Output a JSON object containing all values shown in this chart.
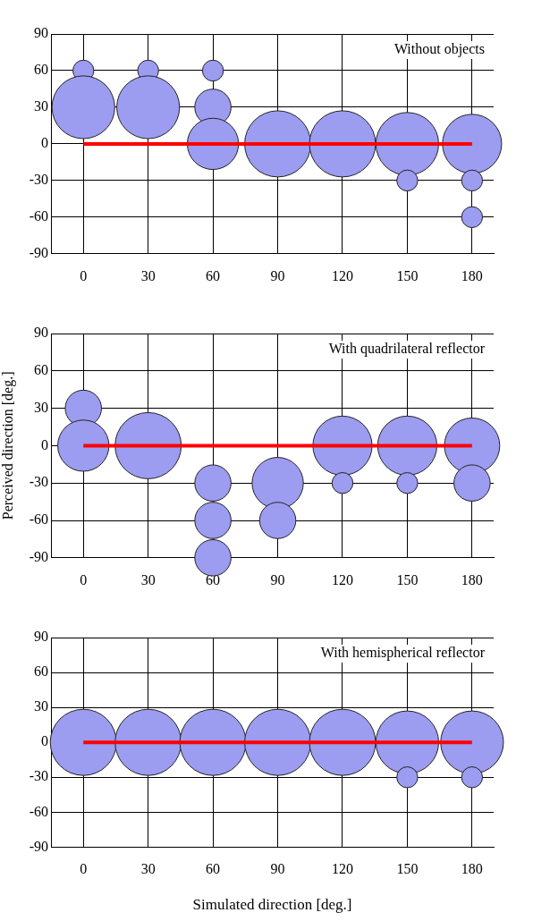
{
  "chart_data": [
    {
      "type": "bubble",
      "title": "Without objects",
      "xlim": [
        -15,
        190
      ],
      "ylim": [
        -90,
        90
      ],
      "xticks": [
        0,
        30,
        60,
        90,
        120,
        150,
        180
      ],
      "yticks": [
        -90,
        -60,
        -30,
        0,
        30,
        60,
        90
      ],
      "grid": true,
      "series": [
        {
          "color": "#9c9cf0",
          "x": [
            0,
            0,
            30,
            30,
            60,
            60,
            60,
            90,
            120,
            150,
            150,
            180,
            180,
            180
          ],
          "values": [
            60,
            30,
            60,
            30,
            60,
            30,
            0,
            0,
            0,
            0,
            -30,
            0,
            -30,
            -60
          ],
          "sizes": [
            0.1,
            0.9,
            0.1,
            0.9,
            0.1,
            0.3,
            0.6,
            1,
            1,
            0.9,
            0.1,
            0.8,
            0.1,
            0.1
          ]
        },
        {
          "type": "line",
          "color": "#ff0000",
          "x": [
            0,
            180
          ],
          "values": [
            0,
            0
          ]
        }
      ]
    },
    {
      "type": "bubble",
      "title": "With quadrilateral reflector",
      "ylabel": "Perceived direction [deg.]",
      "xlim": [
        -15,
        190
      ],
      "ylim": [
        -90,
        90
      ],
      "xticks": [
        0,
        30,
        60,
        90,
        120,
        150,
        180
      ],
      "yticks": [
        -90,
        -60,
        -30,
        0,
        30,
        60,
        90
      ],
      "grid": true,
      "series": [
        {
          "color": "#9c9cf0",
          "x": [
            0,
            0,
            30,
            60,
            60,
            60,
            90,
            90,
            120,
            120,
            150,
            150,
            180,
            180
          ],
          "values": [
            30,
            0,
            0,
            -30,
            -60,
            -90,
            -30,
            -60,
            0,
            -30,
            0,
            -30,
            0,
            -30
          ],
          "sizes": [
            0.3,
            0.6,
            1,
            0.3,
            0.3,
            0.3,
            0.6,
            0.3,
            0.8,
            0.1,
            0.8,
            0.1,
            0.7,
            0.3
          ]
        },
        {
          "type": "line",
          "color": "#ff0000",
          "x": [
            0,
            180
          ],
          "values": [
            0,
            0
          ]
        }
      ]
    },
    {
      "type": "bubble",
      "title": "With hemispherical reflector",
      "xlabel": "Simulated direction [deg.]",
      "xlim": [
        -15,
        190
      ],
      "ylim": [
        -90,
        90
      ],
      "xticks": [
        0,
        30,
        60,
        90,
        120,
        150,
        180
      ],
      "yticks": [
        -90,
        -60,
        -30,
        0,
        30,
        60,
        90
      ],
      "grid": true,
      "series": [
        {
          "color": "#9c9cf0",
          "x": [
            0,
            30,
            60,
            90,
            120,
            150,
            150,
            180,
            180
          ],
          "values": [
            0,
            0,
            0,
            0,
            0,
            0,
            -30,
            0,
            -30
          ],
          "sizes": [
            1,
            1,
            1,
            1,
            1,
            0.9,
            0.1,
            0.9,
            0.1
          ]
        },
        {
          "type": "line",
          "color": "#ff0000",
          "x": [
            0,
            180
          ],
          "values": [
            0,
            0
          ]
        }
      ]
    }
  ]
}
